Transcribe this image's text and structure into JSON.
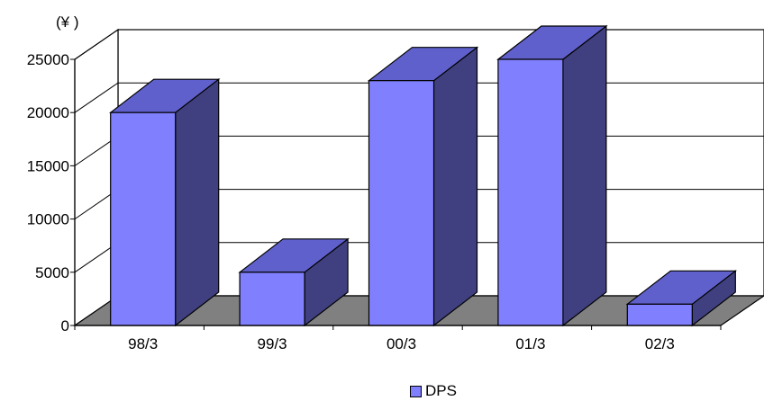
{
  "chart_data": {
    "type": "bar",
    "style": "3d-column",
    "title": "",
    "ylabel": "(¥ )",
    "xlabel": "",
    "categories": [
      "98/3",
      "99/3",
      "00/3",
      "01/3",
      "02/3"
    ],
    "series": [
      {
        "name": "DPS",
        "values": [
          20000,
          5000,
          23000,
          25000,
          2000
        ]
      }
    ],
    "ylim": [
      0,
      25000
    ],
    "yticks": [
      0,
      5000,
      10000,
      15000,
      20000,
      25000
    ],
    "ytick_labels": [
      "0",
      "5000",
      "10000",
      "15000",
      "20000",
      "25000"
    ],
    "grid": true,
    "legend": "bottom-center",
    "colors": {
      "bar_front": "#8080ff",
      "bar_top": "#6060cc",
      "bar_side": "#404080",
      "floor": "#808080"
    }
  }
}
